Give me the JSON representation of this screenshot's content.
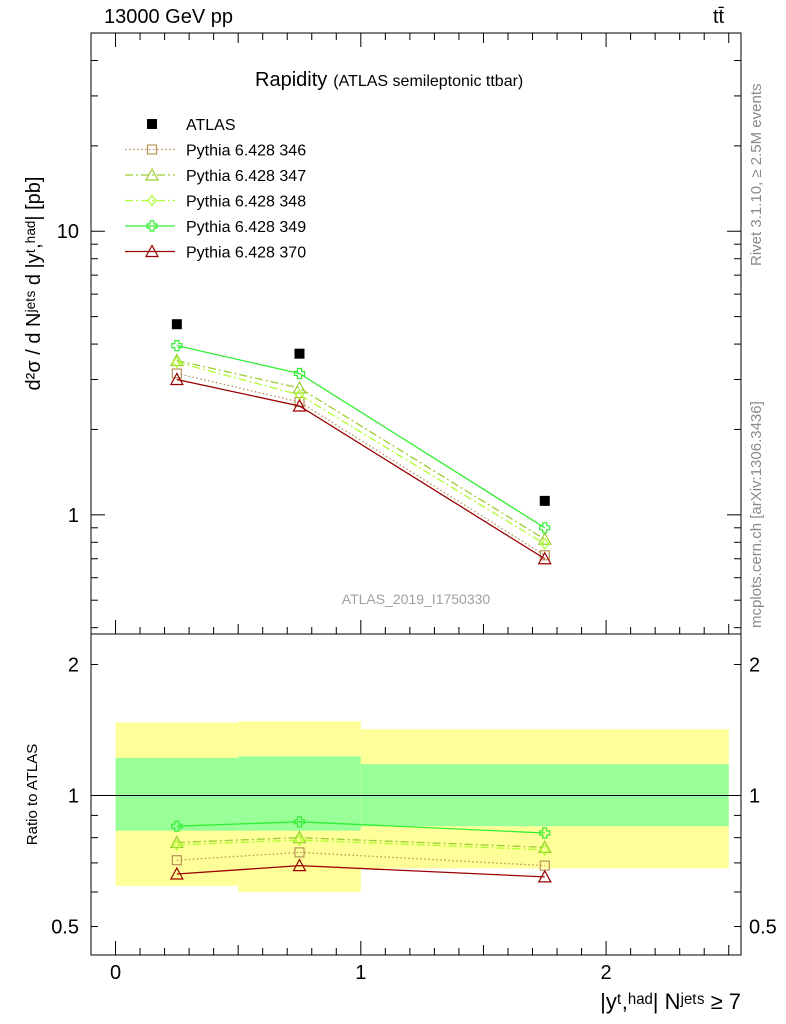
{
  "header": {
    "energy": "13000 GeV pp",
    "process": "tt̄"
  },
  "side_labels": {
    "rivet": "Rivet 3.1.10, ≥ 2.5M events",
    "mcplots": "mcplots.cern.ch [arXiv:1306.3436]"
  },
  "chart_data": [
    {
      "type": "scatter",
      "title": "Rapidity",
      "subtitle": "(ATLAS semileptonic ttbar)",
      "ylabel": "d²σ / d Nʲᵉᵗˢ d |yᵗ,ʰᵃᵈ| [pb]",
      "yscale": "log",
      "ylim": [
        0.38,
        50
      ],
      "xlim": [
        -0.1,
        2.55
      ],
      "ytick_labels": [
        "1",
        "10"
      ],
      "watermark": "ATLAS_2019_I1750330",
      "legend_position": "top-left",
      "x": [
        0.25,
        0.75,
        1.75
      ],
      "series": [
        {
          "name": "ATLAS",
          "values": [
            4.7,
            3.7,
            1.12
          ],
          "color": "#000000",
          "marker": "square-filled",
          "line": "none"
        },
        {
          "name": "Pythia 6.428 346",
          "values": [
            3.15,
            2.5,
            0.72
          ],
          "color": "#b8925a",
          "marker": "square-open",
          "line": "dotted"
        },
        {
          "name": "Pythia 6.428 347",
          "values": [
            3.5,
            2.8,
            0.82
          ],
          "color": "#9acd32",
          "marker": "triangle-open",
          "line": "dashdot"
        },
        {
          "name": "Pythia 6.428 348",
          "values": [
            3.45,
            2.65,
            0.79
          ],
          "color": "#adff2f",
          "marker": "diamond-open",
          "line": "dashdot"
        },
        {
          "name": "Pythia 6.428 349",
          "values": [
            3.95,
            3.15,
            0.9
          ],
          "color": "#33ee33",
          "marker": "cross-open",
          "line": "solid"
        },
        {
          "name": "Pythia 6.428 370",
          "values": [
            3.0,
            2.42,
            0.7
          ],
          "color": "#990000",
          "marker": "triangle-open",
          "line": "solid"
        }
      ]
    },
    {
      "type": "line",
      "ylabel": "Ratio to ATLAS",
      "xlabel": "|yᵗ,ʰᵃᵈ| Nʲᵉᵗˢ ≥ 7",
      "yscale": "log",
      "ylim": [
        0.43,
        2.35
      ],
      "xlim": [
        -0.1,
        2.55
      ],
      "ytick_labels": [
        "0.5",
        "1",
        "2"
      ],
      "xtick_labels": [
        "0",
        "1",
        "2"
      ],
      "bins": [
        [
          0,
          0.5
        ],
        [
          0.5,
          1.0
        ],
        [
          1.0,
          2.5
        ]
      ],
      "band_yellow": [
        [
          0.62,
          1.47
        ],
        [
          0.6,
          1.48
        ],
        [
          0.68,
          1.42
        ]
      ],
      "band_green": [
        [
          0.83,
          1.22
        ],
        [
          0.83,
          1.23
        ],
        [
          0.85,
          1.18
        ]
      ],
      "x": [
        0.25,
        0.75,
        1.75
      ],
      "series": [
        {
          "name": "Pythia 6.428 346",
          "values": [
            0.71,
            0.74,
            0.69
          ],
          "color": "#b8925a",
          "marker": "square-open",
          "line": "dotted"
        },
        {
          "name": "Pythia 6.428 347",
          "values": [
            0.78,
            0.8,
            0.76
          ],
          "color": "#9acd32",
          "marker": "triangle-open",
          "line": "dashdot"
        },
        {
          "name": "Pythia 6.428 348",
          "values": [
            0.77,
            0.79,
            0.75
          ],
          "color": "#adff2f",
          "marker": "diamond-open",
          "line": "dashdot"
        },
        {
          "name": "Pythia 6.428 349",
          "values": [
            0.85,
            0.87,
            0.82
          ],
          "color": "#33ee33",
          "marker": "cross-open",
          "line": "solid"
        },
        {
          "name": "Pythia 6.428 370",
          "values": [
            0.66,
            0.69,
            0.65
          ],
          "color": "#990000",
          "marker": "triangle-open",
          "line": "solid"
        }
      ]
    }
  ]
}
